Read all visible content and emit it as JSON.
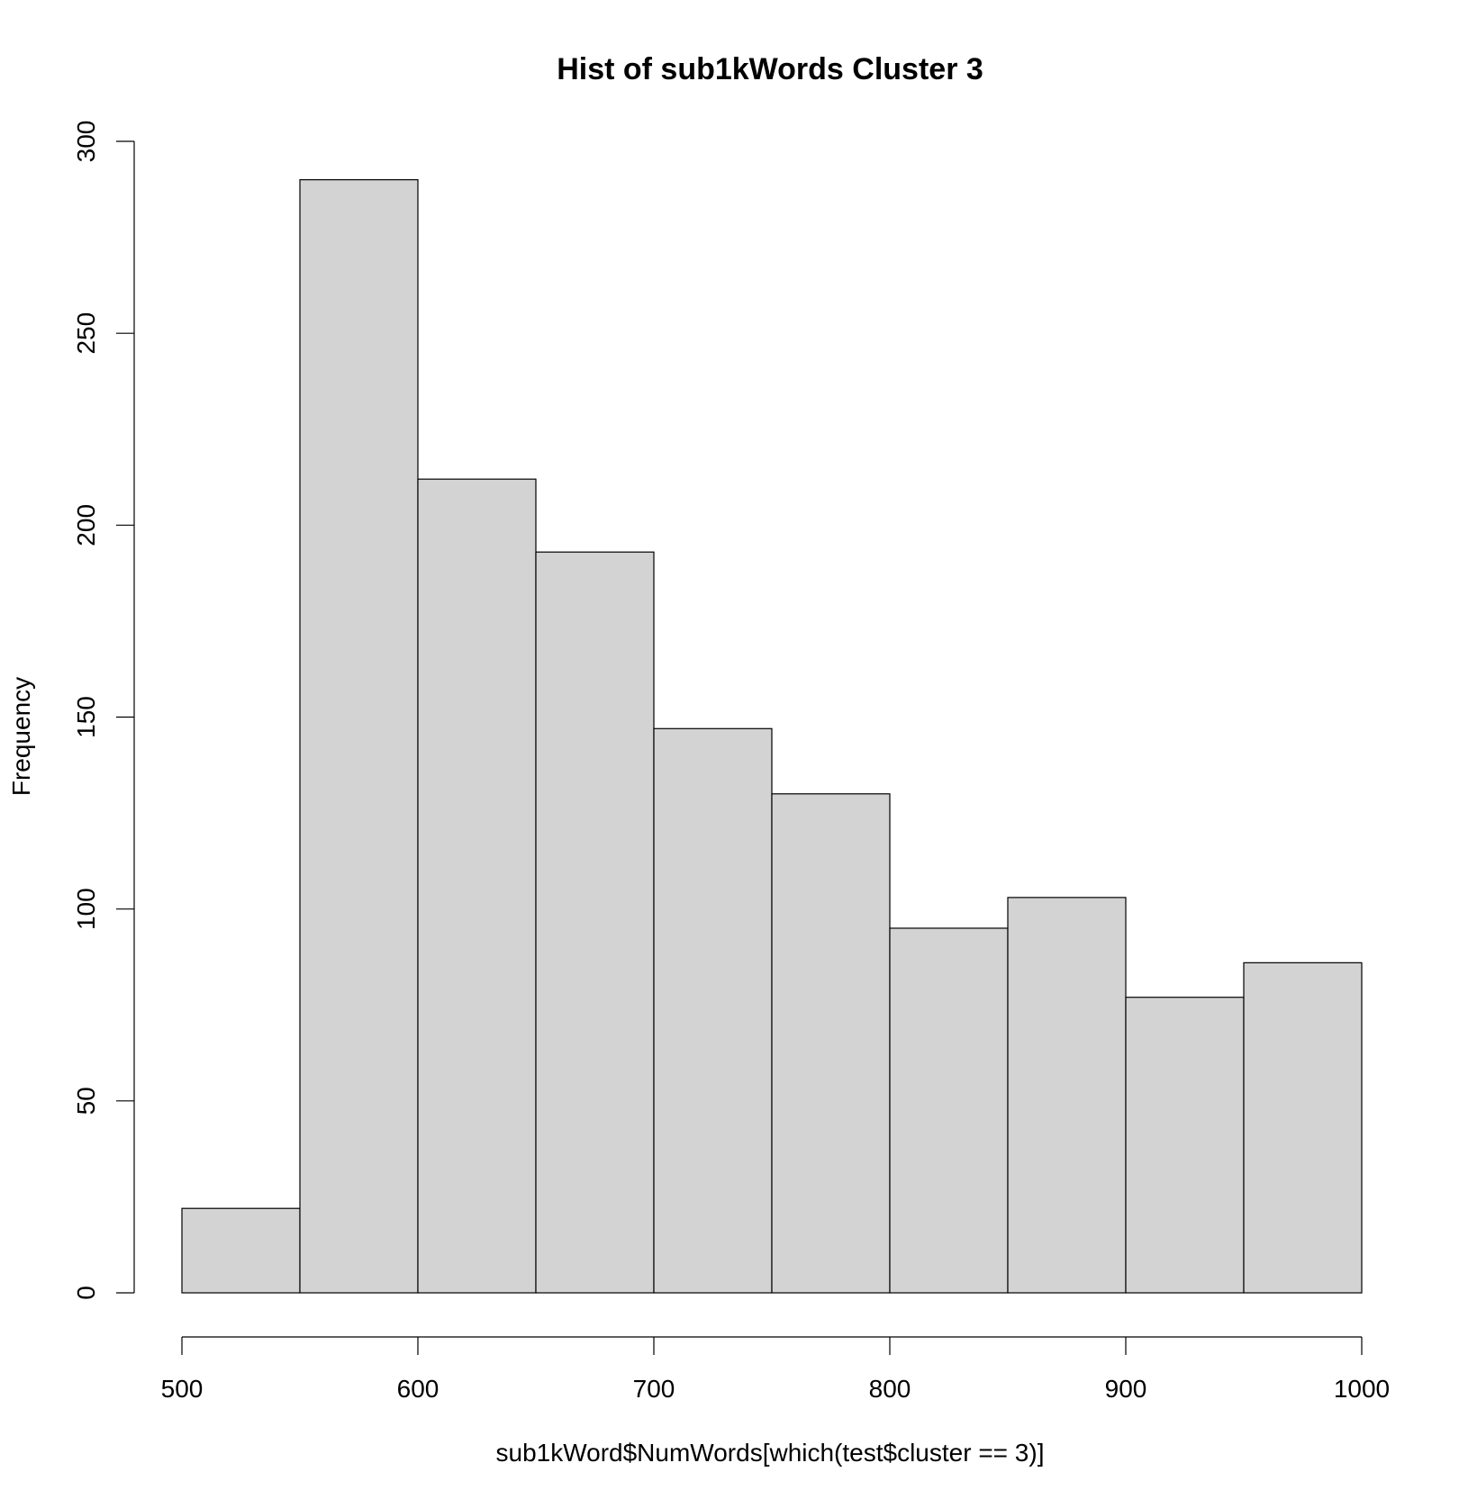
{
  "chart_data": {
    "type": "bar",
    "title": "Hist of sub1kWords Cluster 3",
    "xlabel": "sub1kWord$NumWords[which(test$cluster == 3)]",
    "ylabel": "Frequency",
    "bins": [
      {
        "x0": 500,
        "x1": 550,
        "value": 22
      },
      {
        "x0": 550,
        "x1": 600,
        "value": 290
      },
      {
        "x0": 600,
        "x1": 650,
        "value": 212
      },
      {
        "x0": 650,
        "x1": 700,
        "value": 193
      },
      {
        "x0": 700,
        "x1": 750,
        "value": 147
      },
      {
        "x0": 750,
        "x1": 800,
        "value": 130
      },
      {
        "x0": 800,
        "x1": 850,
        "value": 95
      },
      {
        "x0": 850,
        "x1": 900,
        "value": 103
      },
      {
        "x0": 900,
        "x1": 950,
        "value": 77
      },
      {
        "x0": 950,
        "x1": 1000,
        "value": 86
      }
    ],
    "xlim": [
      500,
      1000
    ],
    "ylim": [
      0,
      300
    ],
    "x_ticks": [
      "500",
      "600",
      "700",
      "800",
      "900",
      "1000"
    ],
    "y_ticks": [
      "0",
      "50",
      "100",
      "150",
      "200",
      "250",
      "300"
    ],
    "grid": false,
    "legend": "none",
    "bar_fill": "#d3d3d3",
    "bar_stroke": "#000000"
  }
}
